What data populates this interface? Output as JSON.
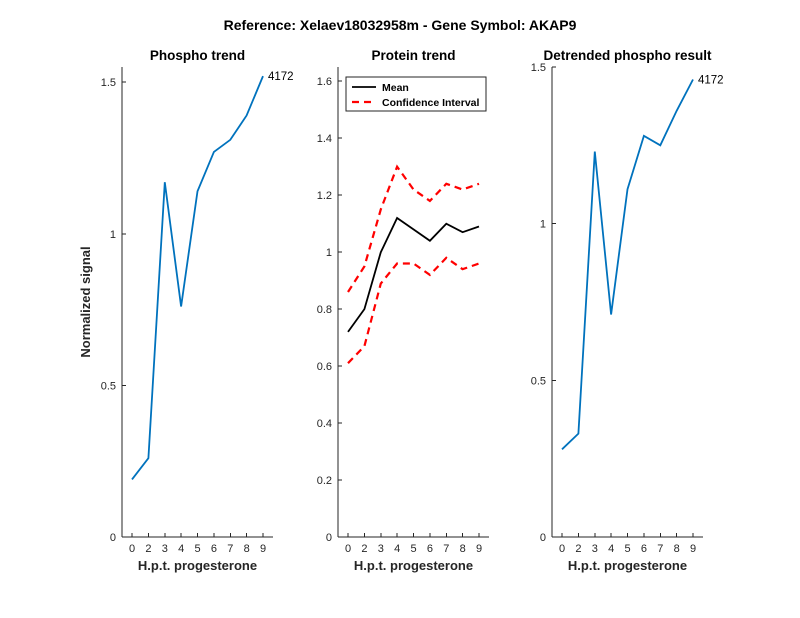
{
  "figure": {
    "suptitle": "Reference:  Xelaev18032958m - Gene Symbol:  AKAP9"
  },
  "chart_data": [
    {
      "type": "line",
      "title": "Phospho trend",
      "xlabel": "H.p.t. progesterone",
      "ylabel": "Normalized signal",
      "categories": [
        "0",
        "2",
        "3",
        "4",
        "5",
        "6",
        "7",
        "8",
        "9"
      ],
      "ylim": [
        0,
        1.55
      ],
      "yticks": [
        0,
        0.5,
        1,
        1.5
      ],
      "ytick_labels": [
        "0",
        "0.5",
        "1",
        "1.5"
      ],
      "series": [
        {
          "values": [
            0.19,
            0.26,
            1.17,
            0.76,
            1.14,
            1.27,
            1.31,
            1.39,
            1.52
          ],
          "color": "#0072BD",
          "style": "solid",
          "end_label": "4172"
        }
      ]
    },
    {
      "type": "line",
      "title": "Protein trend",
      "xlabel": "H.p.t. progesterone",
      "ylabel": "",
      "categories": [
        "0",
        "2",
        "3",
        "4",
        "5",
        "6",
        "7",
        "8",
        "9"
      ],
      "ylim": [
        0,
        1.65
      ],
      "yticks": [
        0,
        0.2,
        0.4,
        0.6,
        0.8,
        1,
        1.2,
        1.4,
        1.6
      ],
      "ytick_labels": [
        "0",
        "0.2",
        "0.4",
        "0.6",
        "0.8",
        "1",
        "1.2",
        "1.4",
        "1.6"
      ],
      "legend": {
        "placement": "top-left",
        "entries": [
          "Mean",
          "Confidence Interval"
        ]
      },
      "series": [
        {
          "name": "Mean",
          "values": [
            0.72,
            0.8,
            1.0,
            1.12,
            1.08,
            1.04,
            1.1,
            1.07,
            1.09
          ],
          "color": "#000000",
          "style": "solid"
        },
        {
          "name": "Confidence Interval",
          "values": [
            0.86,
            0.95,
            1.15,
            1.3,
            1.22,
            1.18,
            1.24,
            1.22,
            1.24
          ],
          "color": "#FF0000",
          "style": "dashed"
        },
        {
          "values": [
            0.61,
            0.67,
            0.89,
            0.96,
            0.96,
            0.92,
            0.98,
            0.94,
            0.96
          ],
          "color": "#FF0000",
          "style": "dashed"
        }
      ]
    },
    {
      "type": "line",
      "title": "Detrended phospho result",
      "xlabel": "H.p.t. progesterone",
      "ylabel": "",
      "categories": [
        "0",
        "2",
        "3",
        "4",
        "5",
        "6",
        "7",
        "8",
        "9"
      ],
      "ylim": [
        0,
        1.5
      ],
      "yticks": [
        0,
        0.5,
        1,
        1.5
      ],
      "ytick_labels": [
        "0",
        "0.5",
        "1",
        "1.5"
      ],
      "series": [
        {
          "values": [
            0.28,
            0.33,
            1.23,
            0.71,
            1.11,
            1.28,
            1.25,
            1.36,
            1.46
          ],
          "color": "#0072BD",
          "style": "solid",
          "end_label": "4172"
        }
      ]
    }
  ]
}
